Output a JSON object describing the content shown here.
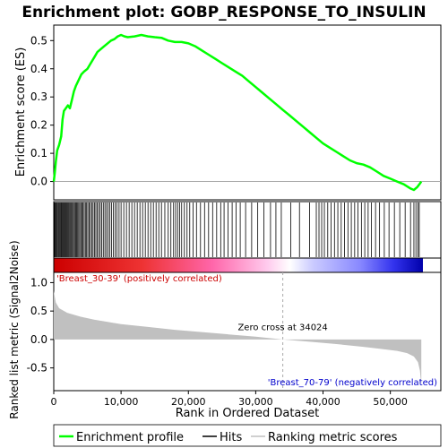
{
  "chart_data": {
    "type": "line",
    "title": "Enrichment plot: GOBP_RESPONSE_TO_INSULIN",
    "es_panel": {
      "ylabel": "Enrichment score (ES)",
      "yticks": [
        0.0,
        0.1,
        0.2,
        0.3,
        0.4,
        0.5
      ],
      "ylim": [
        -0.065,
        0.555
      ],
      "series_name": "Enrichment profile",
      "color": "#00ff00",
      "points": [
        [
          0,
          0.0
        ],
        [
          150,
          0.03
        ],
        [
          300,
          0.07
        ],
        [
          500,
          0.11
        ],
        [
          800,
          0.13
        ],
        [
          1100,
          0.16
        ],
        [
          1300,
          0.22
        ],
        [
          1500,
          0.25
        ],
        [
          1800,
          0.26
        ],
        [
          2100,
          0.27
        ],
        [
          2400,
          0.26
        ],
        [
          2700,
          0.29
        ],
        [
          3000,
          0.32
        ],
        [
          3300,
          0.34
        ],
        [
          3700,
          0.36
        ],
        [
          4100,
          0.38
        ],
        [
          4500,
          0.39
        ],
        [
          5000,
          0.4
        ],
        [
          5500,
          0.42
        ],
        [
          6000,
          0.44
        ],
        [
          6500,
          0.46
        ],
        [
          7000,
          0.47
        ],
        [
          7500,
          0.48
        ],
        [
          8000,
          0.49
        ],
        [
          8500,
          0.5
        ],
        [
          9000,
          0.505
        ],
        [
          9500,
          0.515
        ],
        [
          10000,
          0.52
        ],
        [
          10500,
          0.515
        ],
        [
          11000,
          0.512
        ],
        [
          12000,
          0.515
        ],
        [
          13000,
          0.52
        ],
        [
          14000,
          0.515
        ],
        [
          15000,
          0.512
        ],
        [
          16000,
          0.51
        ],
        [
          17000,
          0.5
        ],
        [
          18000,
          0.495
        ],
        [
          19000,
          0.495
        ],
        [
          20000,
          0.49
        ],
        [
          21000,
          0.48
        ],
        [
          22000,
          0.465
        ],
        [
          23000,
          0.45
        ],
        [
          24000,
          0.435
        ],
        [
          25000,
          0.42
        ],
        [
          26000,
          0.405
        ],
        [
          27000,
          0.39
        ],
        [
          28000,
          0.375
        ],
        [
          29000,
          0.355
        ],
        [
          30000,
          0.335
        ],
        [
          31000,
          0.315
        ],
        [
          32000,
          0.295
        ],
        [
          33000,
          0.275
        ],
        [
          34000,
          0.255
        ],
        [
          35000,
          0.235
        ],
        [
          36000,
          0.215
        ],
        [
          37000,
          0.195
        ],
        [
          38000,
          0.175
        ],
        [
          39000,
          0.155
        ],
        [
          40000,
          0.135
        ],
        [
          41000,
          0.12
        ],
        [
          42000,
          0.105
        ],
        [
          43000,
          0.09
        ],
        [
          44000,
          0.075
        ],
        [
          45000,
          0.065
        ],
        [
          46000,
          0.06
        ],
        [
          47000,
          0.05
        ],
        [
          48000,
          0.035
        ],
        [
          49000,
          0.02
        ],
        [
          50000,
          0.01
        ],
        [
          51000,
          0.0
        ],
        [
          52000,
          -0.01
        ],
        [
          53000,
          -0.025
        ],
        [
          53500,
          -0.03
        ],
        [
          54000,
          -0.02
        ],
        [
          54300,
          -0.01
        ],
        [
          54600,
          0.0
        ]
      ]
    },
    "hits_panel": {
      "legend_name": "Hits",
      "positive_hit_positions": [
        120,
        210,
        330,
        460,
        560,
        700,
        820,
        950,
        1080,
        1200,
        1330,
        1460,
        1590,
        1720,
        1850,
        1980,
        2110,
        2240,
        2380,
        2520,
        2660,
        2800,
        2950,
        3100,
        3250,
        3400,
        3550,
        3700,
        3860,
        4020,
        4180,
        4350,
        4520,
        4700,
        4880,
        5060,
        5250,
        5440,
        5640,
        5840,
        6040,
        6250,
        6460,
        6680,
        6900,
        7130,
        7360,
        7600,
        7840,
        8090,
        8340,
        8600,
        8860,
        9130,
        9400,
        9700,
        10000,
        10400,
        10800,
        11200,
        11600,
        12000,
        12400,
        12800,
        13200,
        13600,
        14000,
        14400,
        14800,
        15200,
        15600,
        16000,
        16500,
        17000,
        17400,
        17800,
        18100,
        18400,
        18700,
        19000,
        19400,
        19800,
        20200,
        20700,
        21200,
        21800,
        22400,
        23000,
        23600,
        24200,
        24800,
        25300,
        25900,
        26500,
        27100,
        27700,
        28500,
        29400,
        30300,
        31200,
        32200,
        33000,
        33800
      ],
      "negative_hit_positions": [
        35200,
        36500,
        38000,
        39000,
        39400,
        39800,
        40200,
        40700,
        41200,
        41700,
        42200,
        42700,
        43200,
        43700,
        44200,
        44700,
        45200,
        45700,
        46200,
        46700,
        47200,
        47800,
        48400,
        49100,
        49800,
        50600,
        51400,
        52200,
        53000,
        53500,
        53800,
        54100,
        54300
      ]
    },
    "metric_panel": {
      "ylabel": "Ranked list metric (Signal2Noise)",
      "yticks": [
        -0.5,
        0.0,
        0.5,
        1.0
      ],
      "ylim": [
        -0.9,
        1.18
      ],
      "legend_name": "Ranking metric scores",
      "zero_cross_rank": 34024,
      "zero_cross_text": "Zero cross at 34024",
      "positive_label": "'Breast_30-39' (positively correlated)",
      "negative_label": "'Breast_70-79' (negatively correlated)",
      "positive_color": "#cc0000",
      "negative_color": "#0000cc",
      "profile": [
        [
          0,
          0.85
        ],
        [
          300,
          0.65
        ],
        [
          800,
          0.55
        ],
        [
          2000,
          0.47
        ],
        [
          4000,
          0.4
        ],
        [
          6000,
          0.35
        ],
        [
          8000,
          0.31
        ],
        [
          10000,
          0.27
        ],
        [
          14000,
          0.22
        ],
        [
          18000,
          0.17
        ],
        [
          22000,
          0.13
        ],
        [
          26000,
          0.09
        ],
        [
          30000,
          0.05
        ],
        [
          34024,
          0.0
        ],
        [
          38000,
          -0.04
        ],
        [
          42000,
          -0.08
        ],
        [
          46000,
          -0.13
        ],
        [
          49000,
          -0.17
        ],
        [
          51000,
          -0.2
        ],
        [
          52500,
          -0.24
        ],
        [
          53500,
          -0.3
        ],
        [
          54100,
          -0.4
        ],
        [
          54400,
          -0.55
        ],
        [
          54600,
          -0.82
        ]
      ]
    },
    "x_axis": {
      "label": "Rank in Ordered Dataset",
      "ticks": [
        0,
        10000,
        20000,
        30000,
        40000,
        50000
      ],
      "tick_labels": [
        "0",
        "10,000",
        "20,000",
        "30,000",
        "40,000",
        "50,000"
      ],
      "xlim": [
        0,
        57500
      ],
      "n_genes": 54600
    },
    "legend": {
      "entries": [
        "Enrichment profile",
        "Hits",
        "Ranking metric scores"
      ],
      "placement": "bottom"
    }
  }
}
